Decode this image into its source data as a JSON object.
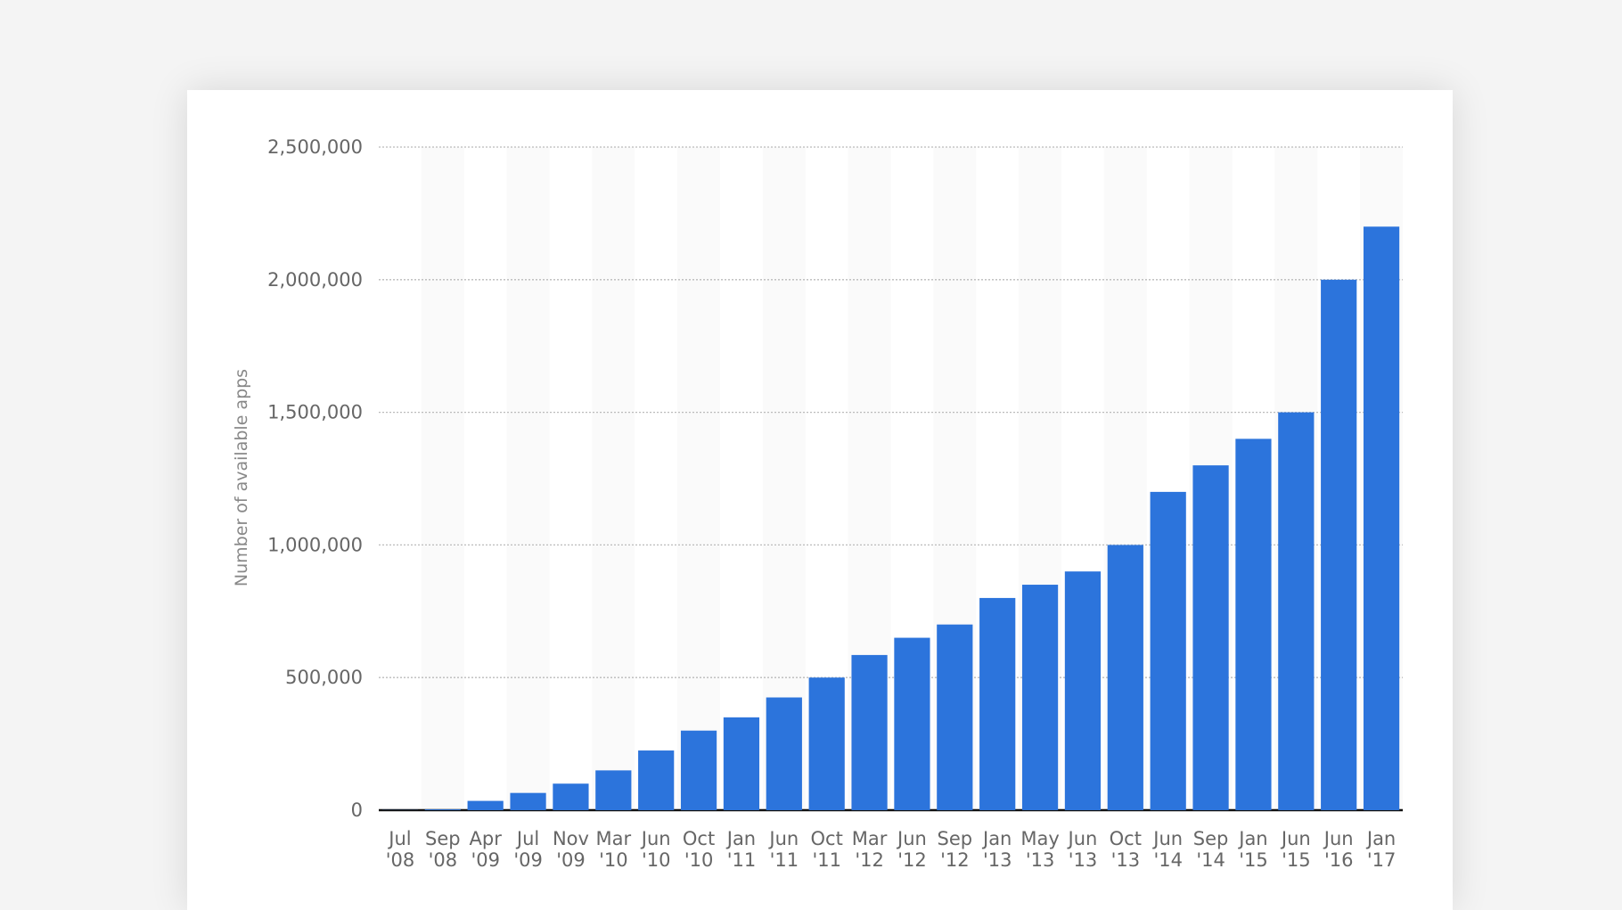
{
  "chart_data": {
    "type": "bar",
    "title": "",
    "xlabel": "",
    "ylabel": "Number of available apps",
    "ylim": [
      0,
      2500000
    ],
    "yticks": [
      0,
      500000,
      1000000,
      1500000,
      2000000,
      2500000
    ],
    "ytick_labels": [
      "0",
      "500,000",
      "1,000,000",
      "1,500,000",
      "2,000,000",
      "2,500,000"
    ],
    "grid": true,
    "bar_color": "#2c74dc",
    "categories": [
      [
        "Jul",
        "'08"
      ],
      [
        "Sep",
        "'08"
      ],
      [
        "Apr",
        "'09"
      ],
      [
        "Jul",
        "'09"
      ],
      [
        "Nov",
        "'09"
      ],
      [
        "Mar",
        "'10"
      ],
      [
        "Jun",
        "'10"
      ],
      [
        "Oct",
        "'10"
      ],
      [
        "Jan",
        "'11"
      ],
      [
        "Jun",
        "'11"
      ],
      [
        "Oct",
        "'11"
      ],
      [
        "Mar",
        "'12"
      ],
      [
        "Jun",
        "'12"
      ],
      [
        "Sep",
        "'12"
      ],
      [
        "Jan",
        "'13"
      ],
      [
        "May",
        "'13"
      ],
      [
        "Jun",
        "'13"
      ],
      [
        "Oct",
        "'13"
      ],
      [
        "Jun",
        "'14"
      ],
      [
        "Sep",
        "'14"
      ],
      [
        "Jan",
        "'15"
      ],
      [
        "Jun",
        "'15"
      ],
      [
        "Jun",
        "'16"
      ],
      [
        "Jan",
        "'17"
      ]
    ],
    "values": [
      500,
      3000,
      35000,
      65000,
      100000,
      150000,
      225000,
      300000,
      350000,
      425000,
      500000,
      585000,
      650000,
      700000,
      800000,
      850000,
      900000,
      1000000,
      1200000,
      1300000,
      1400000,
      1500000,
      2000000,
      2200000
    ]
  }
}
